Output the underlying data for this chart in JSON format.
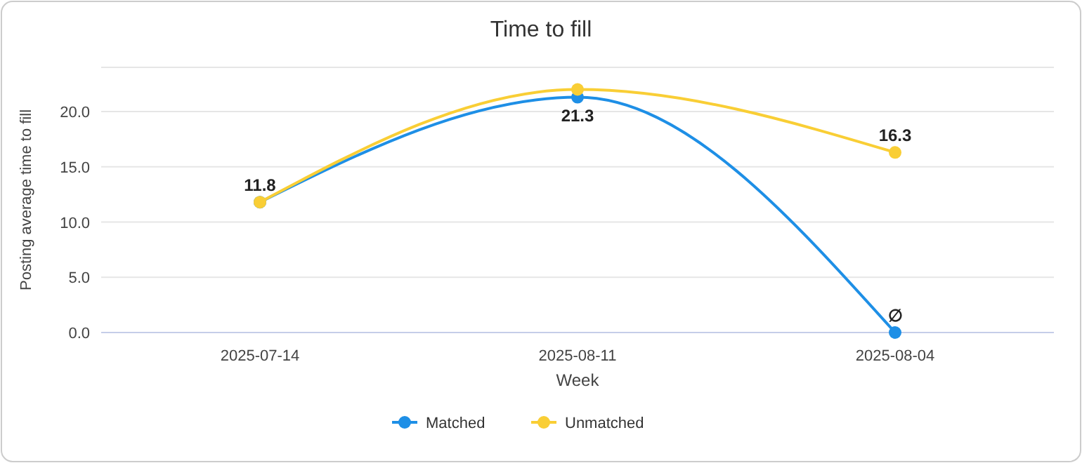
{
  "chart_data": {
    "type": "line",
    "title": "Time to fill",
    "xlabel": "Week",
    "ylabel": "Posting average time to fill",
    "categories": [
      "2025-07-14",
      "2025-08-11",
      "2025-08-04"
    ],
    "series": [
      {
        "name": "Matched",
        "color": "#1e8fe6",
        "values": [
          11.8,
          21.3,
          0
        ],
        "value_labels": [
          "11.8",
          "21.3",
          "∅"
        ]
      },
      {
        "name": "Unmatched",
        "color": "#f9ce35",
        "values": [
          11.8,
          22.0,
          16.3
        ],
        "value_labels": [
          null,
          null,
          "16.3"
        ]
      }
    ],
    "ylim": [
      0,
      24
    ],
    "yticks": [
      {
        "value": 0,
        "label": "0.0"
      },
      {
        "value": 5,
        "label": "5.0"
      },
      {
        "value": 10,
        "label": "10.0"
      },
      {
        "value": 15,
        "label": "15.0"
      },
      {
        "value": 20,
        "label": "20.0"
      },
      {
        "value": 24,
        "label": null
      }
    ],
    "grid": "y",
    "legend": "bottom",
    "marker": "circle",
    "line_style": "solid"
  }
}
